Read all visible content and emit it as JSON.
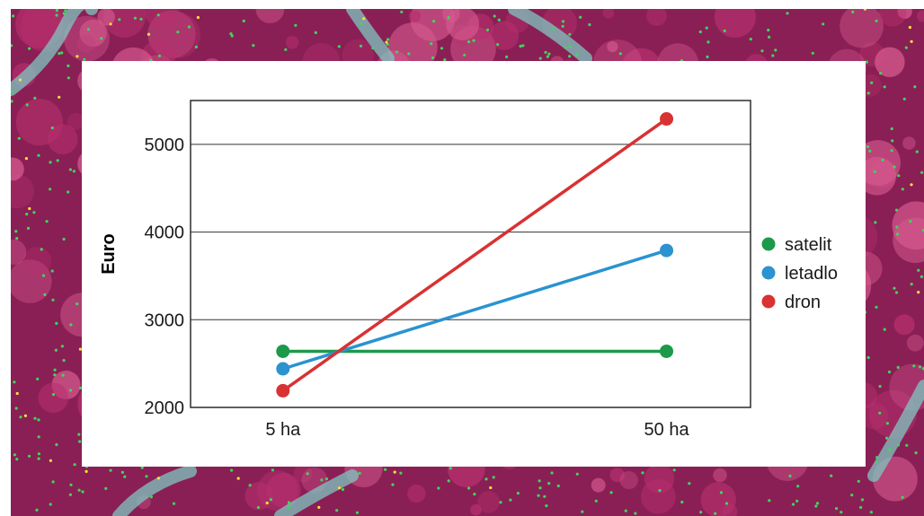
{
  "background": {
    "description_colors": {
      "base": "#8a1f55",
      "canopy": "#b8306e",
      "light": "#d65a8f",
      "road": "#7fc7c0",
      "dot_green": "#3fd65a",
      "dot_yellow": "#f2e33a"
    },
    "icon": "aerial-false-color-forest-image"
  },
  "chart_data": {
    "type": "line",
    "title": "",
    "xlabel": "",
    "ylabel": "Euro",
    "categories": [
      "5 ha",
      "50 ha"
    ],
    "ylim": [
      2000,
      5500
    ],
    "yticks": [
      2000,
      3000,
      4000,
      5000
    ],
    "grid": true,
    "legend_position": "right",
    "series": [
      {
        "name": "satelit",
        "color": "#1c9a49",
        "values": [
          2640,
          2640
        ]
      },
      {
        "name": "letadlo",
        "color": "#2a93d0",
        "values": [
          2440,
          3790
        ]
      },
      {
        "name": "dron",
        "color": "#d83232",
        "values": [
          2190,
          5290
        ]
      }
    ]
  }
}
